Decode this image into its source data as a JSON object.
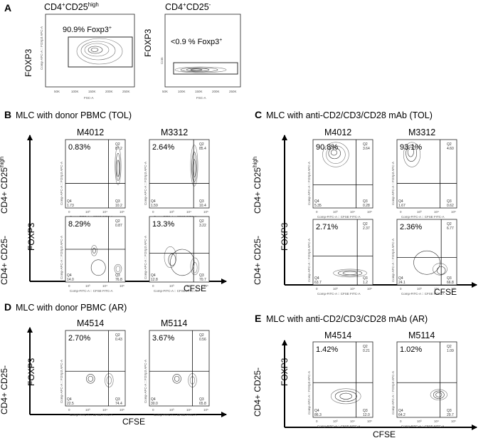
{
  "figure": {
    "panel_a": {
      "letter": "A",
      "plots": [
        {
          "title_main": "CD4",
          "title_sup1": "+",
          "title_mid": "CD25",
          "title_sup2": "high",
          "gate_label": "90.9% Foxp3",
          "gate_sup": "+",
          "yaxis": "FOXP3",
          "xaxis_small": "FSC-A",
          "yaxis_small": "Comp-APC-A :: FOXp3 APC-A",
          "xticks": [
            "50K",
            "100K",
            "150K",
            "200K",
            "250K"
          ]
        },
        {
          "title_main": "CD4",
          "title_sup1": "+",
          "title_mid": "CD25",
          "title_sup2": "-",
          "gate_label": "<0.9 % Foxp3",
          "gate_sup": "+",
          "yaxis": "FOXP3",
          "xaxis_small": "FSC-A",
          "yaxis_small": "Com",
          "xticks": [
            "50K",
            "100K",
            "150K",
            "200K",
            "250K"
          ]
        }
      ]
    },
    "panel_b": {
      "letter": "B",
      "title": "MLC with donor PBMC (TOL)",
      "columns": [
        "M4012",
        "M3312"
      ],
      "row_labels": [
        "CD4+ CD25",
        "CD4+ CD25-"
      ],
      "row_sup": "high",
      "yaxis": "FOXP3",
      "xaxis": "CFSE",
      "plots": [
        {
          "pct": "0.83%",
          "q2": "87.2",
          "q3": "10.2",
          "q4": "1.73",
          "qname2": "Q2",
          "qname3": "Q3",
          "qname4": "Q4"
        },
        {
          "pct": "2.64%",
          "q2": "85.4",
          "q3": "10.4",
          "q4": "1.59",
          "qname2": "Q2",
          "qname3": "Q3",
          "qname4": "Q4"
        },
        {
          "pct": "8.29%",
          "q2": "0.87",
          "q3": "76.8",
          "q4": "14.0",
          "qname2": "Q2",
          "qname3": "Q3",
          "qname4": "Q4"
        },
        {
          "pct": "13.3%",
          "q2": "3.22",
          "q3": "70.7",
          "q4": "12.8",
          "qname2": "Q2",
          "qname3": "Q3",
          "qname4": "Q4"
        }
      ]
    },
    "panel_c": {
      "letter": "C",
      "title": "MLC with anti-CD2/CD3/CD28 mAb (TOL)",
      "columns": [
        "M4012",
        "M3312"
      ],
      "row_labels": [
        "CD4+ CD25",
        "CD4+ CD25-"
      ],
      "row_sup": "high",
      "yaxis": "FOXP3",
      "xaxis": "CFSE",
      "plots": [
        {
          "pct": "90.8%",
          "q2": "3.64",
          "q3": "0.28",
          "q4": "5.35",
          "qname2": "Q2",
          "qname3": "Q3",
          "qname4": "Q4"
        },
        {
          "pct": "93.1%",
          "q2": "4.60",
          "q3": "0.62",
          "q4": "1.67",
          "qname2": "Q2",
          "qname3": "Q3",
          "qname4": "Q4"
        },
        {
          "pct": "2.71%",
          "q2": "2.37",
          "q3": "1.2",
          "q4": "63.7",
          "qname2": "Q2",
          "qname3": "Q3",
          "qname4": "Q4"
        },
        {
          "pct": "2.36%",
          "q2": "6.77",
          "q3": "66.8",
          "q4": "24.1",
          "qname2": "Q2",
          "qname3": "Q3",
          "qname4": "Q4"
        }
      ]
    },
    "panel_d": {
      "letter": "D",
      "title": "MLC with donor PBMC (AR)",
      "columns": [
        "M4514",
        "M5114"
      ],
      "row_labels": [
        "CD4+ CD25-"
      ],
      "yaxis": "FOXP3",
      "xaxis": "CFSE",
      "plots": [
        {
          "pct": "2.70%",
          "q2": "0.43",
          "q3": "74.4",
          "q4": "22.5",
          "qname2": "Q2",
          "qname3": "Q3",
          "qname4": "Q4"
        },
        {
          "pct": "3.67%",
          "q2": "0.56",
          "q3": "65.8",
          "q4": "30.0",
          "qname2": "Q2",
          "qname3": "Q3",
          "qname4": "Q4"
        }
      ]
    },
    "panel_e": {
      "letter": "E",
      "title": "MLC with anti-CD2/CD3/CD28 mAb (AR)",
      "columns": [
        "M4514",
        "M5114"
      ],
      "row_labels": [
        "CD4+ CD25-"
      ],
      "yaxis": "FOXP3",
      "xaxis": "CFSE",
      "plots": [
        {
          "pct": "1.42%",
          "q2": "0.21",
          "q3": "12.0",
          "q4": "86.3",
          "qname2": "Q2",
          "qname3": "Q3",
          "qname4": "Q4"
        },
        {
          "pct": "1.02%",
          "q2": "1.09",
          "q3": "29.7",
          "q4": "64.2",
          "qname2": "Q2",
          "qname3": "Q3",
          "qname4": "Q4"
        }
      ]
    },
    "small_axis": {
      "x": "Comp-FITC-A :: CFSE FITC-A",
      "y": "Comp-APC-A :: FOXp3 APC-A",
      "ticks": [
        "0",
        "10³",
        "10⁴",
        "10⁵"
      ]
    }
  }
}
